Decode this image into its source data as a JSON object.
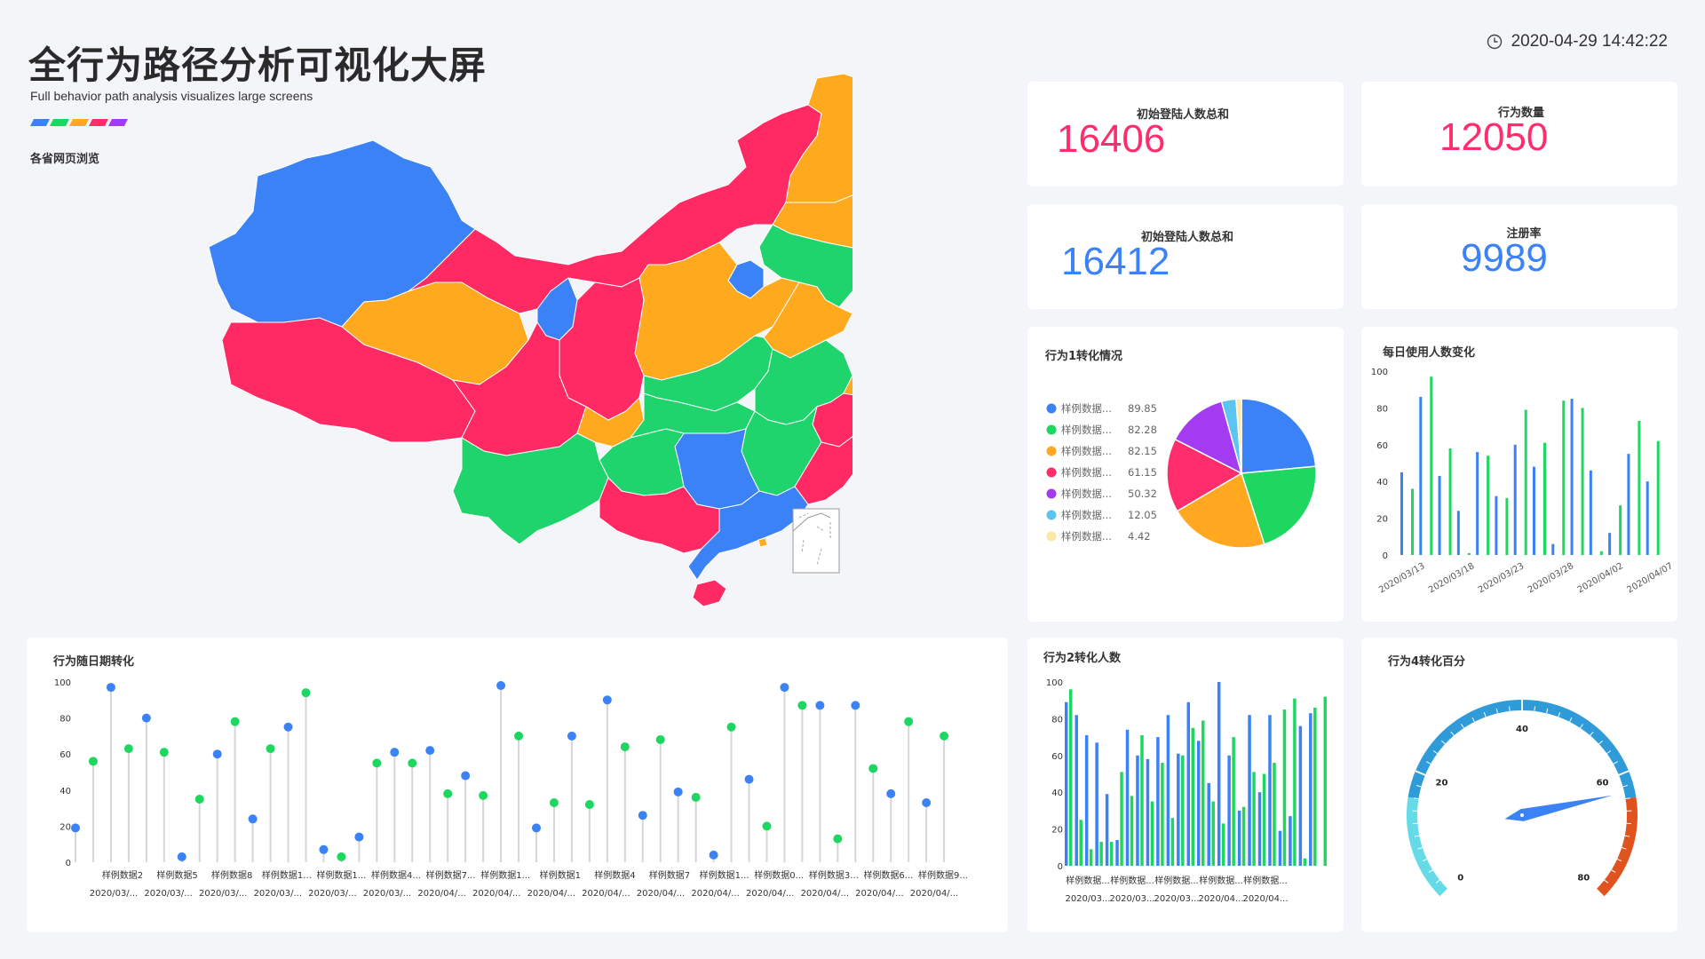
{
  "header": {
    "title": "全行为路径分析可视化大屏",
    "subtitle": "Full behavior path analysis visualizes large screens",
    "datetime": "2020-04-29 14:42:22",
    "stripe_colors": [
      "#3b82f6",
      "#1ed760",
      "#ffa820",
      "#ff2d6b",
      "#a33bf0"
    ]
  },
  "map": {
    "title": "各省网页浏览",
    "palette": {
      "blue": "#3b82f6",
      "red": "#ff2a64",
      "orange": "#ffaa1e",
      "green": "#1fd46c"
    }
  },
  "kpis": [
    {
      "label": "初始登陆人数总和",
      "value": "16406",
      "color": "#ff2d6b"
    },
    {
      "label": "行为数量",
      "value": "12050",
      "color": "#ff2d6b"
    },
    {
      "label": "初始登陆人数总和",
      "value": "16412",
      "color": "#3b82f6"
    },
    {
      "label": "注册率",
      "value": "9989",
      "color": "#3b82f6"
    }
  ],
  "chart_data": [
    {
      "id": "pie1",
      "type": "pie",
      "title": "行为1转化情况",
      "slices": [
        {
          "name": "样例数据...",
          "value": 89.85,
          "color": "#3b82f6"
        },
        {
          "name": "样例数据...",
          "value": 82.28,
          "color": "#1ed760"
        },
        {
          "name": "样例数据...",
          "value": 82.15,
          "color": "#ffa820"
        },
        {
          "name": "样例数据...",
          "value": 61.15,
          "color": "#ff2d6b"
        },
        {
          "name": "样例数据...",
          "value": 50.32,
          "color": "#a33bf0"
        },
        {
          "name": "样例数据...",
          "value": 12.05,
          "color": "#5bc4f0"
        },
        {
          "name": "样例数据...",
          "value": 4.42,
          "color": "#fde8a8"
        }
      ]
    },
    {
      "id": "daily",
      "type": "bar",
      "title": "每日使用人数变化",
      "ylim": [
        0,
        100
      ],
      "yticks": [
        "0",
        "20",
        "40",
        "60",
        "80",
        "100"
      ],
      "xticks": [
        "2020/03/13",
        "2020/03/18",
        "2020/03/23",
        "2020/03/28",
        "2020/04/02",
        "2020/04/07"
      ],
      "series": [
        {
          "values": [
            45,
            86,
            43,
            24,
            56,
            32,
            60,
            48,
            6,
            85,
            46,
            12,
            55,
            40
          ],
          "color": "#3b82f6"
        },
        {
          "values": [
            36,
            97,
            58,
            1,
            54,
            31,
            79,
            61,
            84,
            80,
            2,
            27,
            73,
            62
          ],
          "color": "#1ed760"
        }
      ]
    },
    {
      "id": "lollipop",
      "type": "scatter",
      "title": "行为随日期转化",
      "ylim": [
        0,
        100
      ],
      "yticks": [
        "0",
        "20",
        "40",
        "60",
        "80",
        "100"
      ],
      "xticks_top": [
        "样例数据2",
        "样例数据5",
        "样例数据8",
        "样例数据1...",
        "样例数据1...",
        "样例数据4...",
        "样例数据7...",
        "样例数据1...",
        "样例数据1",
        "样例数据4",
        "样例数据7",
        "样例数据1...",
        "样例数据0...",
        "样例数据3...",
        "样例数据6...",
        "样例数据9..."
      ],
      "xticks_bottom": [
        "2020/03/...",
        "2020/03/...",
        "2020/03/...",
        "2020/03/...",
        "2020/03/...",
        "2020/03/...",
        "2020/04/...",
        "2020/04/...",
        "2020/04/...",
        "2020/04/...",
        "2020/04/...",
        "2020/04/...",
        "2020/04/...",
        "2020/04/...",
        "2020/04/...",
        "2020/04/..."
      ],
      "points": [
        {
          "y": 19,
          "c": "b"
        },
        {
          "y": 56,
          "c": "g"
        },
        {
          "y": 97,
          "c": "b"
        },
        {
          "y": 63,
          "c": "g"
        },
        {
          "y": 80,
          "c": "b"
        },
        {
          "y": 61,
          "c": "g"
        },
        {
          "y": 3,
          "c": "b"
        },
        {
          "y": 35,
          "c": "g"
        },
        {
          "y": 60,
          "c": "b"
        },
        {
          "y": 78,
          "c": "g"
        },
        {
          "y": 24,
          "c": "b"
        },
        {
          "y": 63,
          "c": "g"
        },
        {
          "y": 75,
          "c": "b"
        },
        {
          "y": 94,
          "c": "g"
        },
        {
          "y": 7,
          "c": "b"
        },
        {
          "y": 3,
          "c": "g"
        },
        {
          "y": 14,
          "c": "b"
        },
        {
          "y": 55,
          "c": "g"
        },
        {
          "y": 61,
          "c": "b"
        },
        {
          "y": 55,
          "c": "g"
        },
        {
          "y": 62,
          "c": "b"
        },
        {
          "y": 38,
          "c": "g"
        },
        {
          "y": 48,
          "c": "b"
        },
        {
          "y": 37,
          "c": "g"
        },
        {
          "y": 98,
          "c": "b"
        },
        {
          "y": 70,
          "c": "g"
        },
        {
          "y": 19,
          "c": "b"
        },
        {
          "y": 33,
          "c": "g"
        },
        {
          "y": 70,
          "c": "b"
        },
        {
          "y": 32,
          "c": "g"
        },
        {
          "y": 90,
          "c": "b"
        },
        {
          "y": 64,
          "c": "g"
        },
        {
          "y": 26,
          "c": "b"
        },
        {
          "y": 68,
          "c": "g"
        },
        {
          "y": 39,
          "c": "b"
        },
        {
          "y": 36,
          "c": "g"
        },
        {
          "y": 4,
          "c": "b"
        },
        {
          "y": 75,
          "c": "g"
        },
        {
          "y": 46,
          "c": "b"
        },
        {
          "y": 20,
          "c": "g"
        },
        {
          "y": 97,
          "c": "b"
        },
        {
          "y": 87,
          "c": "g"
        },
        {
          "y": 87,
          "c": "b"
        },
        {
          "y": 13,
          "c": "g"
        },
        {
          "y": 87,
          "c": "b"
        },
        {
          "y": 52,
          "c": "g"
        },
        {
          "y": 38,
          "c": "b"
        },
        {
          "y": 78,
          "c": "g"
        },
        {
          "y": 33,
          "c": "b"
        },
        {
          "y": 70,
          "c": "g"
        }
      ]
    },
    {
      "id": "bars2",
      "type": "bar",
      "title": "行为2转化人数",
      "ylim": [
        0,
        100
      ],
      "yticks": [
        "0",
        "20",
        "40",
        "60",
        "80",
        "100"
      ],
      "xticks_top": [
        "样例数据...",
        "样例数据...",
        "样例数据...",
        "样例数据...",
        "样例数据..."
      ],
      "xticks_bottom": [
        "2020/03...",
        "2020/03...",
        "2020/03...",
        "2020/04...",
        "2020/04..."
      ],
      "series": [
        {
          "values": [
            89,
            82,
            71,
            67,
            39,
            14,
            74,
            60,
            58,
            70,
            82,
            61,
            89,
            68,
            45,
            100,
            60,
            30,
            82,
            40,
            82,
            19,
            27,
            76,
            83,
            0
          ],
          "color": "#3b82f6"
        },
        {
          "values": [
            96,
            25,
            9,
            13,
            13,
            51,
            38,
            71,
            35,
            56,
            26,
            60,
            75,
            79,
            35,
            23,
            70,
            32,
            51,
            50,
            56,
            85,
            91,
            4,
            86,
            92
          ],
          "color": "#1ed760"
        }
      ]
    },
    {
      "id": "gauge",
      "type": "gauge",
      "title": "行为4转化百分",
      "min": 0,
      "max": 80,
      "value": 63,
      "ticks": [
        "0",
        "20",
        "40",
        "60",
        "80"
      ]
    }
  ]
}
